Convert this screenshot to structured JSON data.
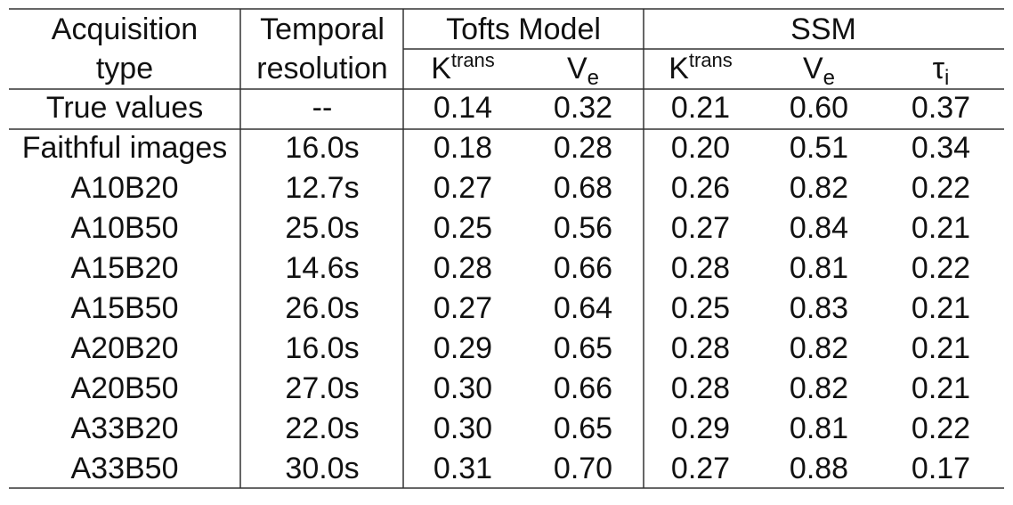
{
  "header": {
    "row1": [
      "Acquisition",
      "Temporal",
      "Tofts Model",
      "SSM"
    ],
    "row2": [
      "type",
      "resolution"
    ],
    "params": [
      {
        "base": "K",
        "sup": "trans"
      },
      {
        "base": "V",
        "sub": "e"
      },
      {
        "base": "K",
        "sup": "trans"
      },
      {
        "base": "V",
        "sub": "e"
      },
      {
        "base": "τ",
        "sub": "i"
      }
    ]
  },
  "table": {
    "rows": [
      [
        "True values",
        "--",
        "0.14",
        "0.32",
        "0.21",
        "0.60",
        "0.37"
      ],
      [
        "Faithful images",
        "16.0s",
        "0.18",
        "0.28",
        "0.20",
        "0.51",
        "0.34"
      ],
      [
        "A10B20",
        "12.7s",
        "0.27",
        "0.68",
        "0.26",
        "0.82",
        "0.22"
      ],
      [
        "A10B50",
        "25.0s",
        "0.25",
        "0.56",
        "0.27",
        "0.84",
        "0.21"
      ],
      [
        "A15B20",
        "14.6s",
        "0.28",
        "0.66",
        "0.28",
        "0.81",
        "0.22"
      ],
      [
        "A15B50",
        "26.0s",
        "0.27",
        "0.64",
        "0.25",
        "0.83",
        "0.21"
      ],
      [
        "A20B20",
        "16.0s",
        "0.29",
        "0.65",
        "0.28",
        "0.82",
        "0.21"
      ],
      [
        "A20B50",
        "27.0s",
        "0.30",
        "0.66",
        "0.28",
        "0.82",
        "0.21"
      ],
      [
        "A33B20",
        "22.0s",
        "0.30",
        "0.65",
        "0.29",
        "0.81",
        "0.22"
      ],
      [
        "A33B50",
        "30.0s",
        "0.31",
        "0.70",
        "0.27",
        "0.88",
        "0.17"
      ]
    ]
  }
}
